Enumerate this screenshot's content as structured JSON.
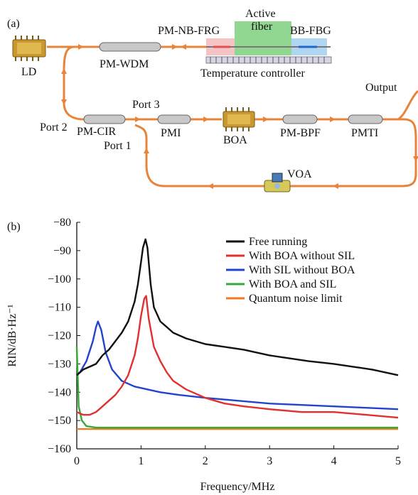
{
  "panel_a": {
    "label": "(a)",
    "components": {
      "ld": "LD",
      "pm_wdm": "PM-WDM",
      "pm_nb_frg": "PM-NB-FRG",
      "active_fiber_line1": "Active",
      "active_fiber_line2": "fiber",
      "bb_fbg": "BB-FBG",
      "temperature_controller": "Temperature controller",
      "output": "Output",
      "port2": "Port 2",
      "port3": "Port 3",
      "port1": "Port 1",
      "pm_cir": "PM-CIR",
      "pmi": "PMI",
      "boa": "BOA",
      "pm_bpf": "PM-BPF",
      "pmti": "PMTI",
      "voa": "VOA"
    },
    "colors": {
      "fiber": "#e8843a",
      "device_body": "#c8c8c8",
      "chip_gold": "#c9982f",
      "fbg_red": "#e05050",
      "active_green": "#7ed07e",
      "fbg_blue": "#5fa8e0"
    }
  },
  "panel_b": {
    "label": "(b)"
  },
  "chart_data": {
    "type": "line",
    "xlabel": "Frequency/MHz",
    "ylabel": "RIN/dB·Hz⁻¹",
    "xlim": [
      0,
      5
    ],
    "ylim": [
      -160,
      -80
    ],
    "xticks": [
      "0",
      "1",
      "2",
      "3",
      "4",
      "5"
    ],
    "yticks": [
      "−80",
      "−90",
      "−100",
      "−110",
      "−120",
      "−130",
      "−140",
      "−150",
      "−160"
    ],
    "grid": false,
    "legend_position": "top-right",
    "series": [
      {
        "name": "Free running",
        "color": "#111111",
        "x": [
          0,
          0.1,
          0.2,
          0.3,
          0.4,
          0.5,
          0.6,
          0.7,
          0.8,
          0.9,
          0.95,
          1.0,
          1.03,
          1.07,
          1.1,
          1.15,
          1.2,
          1.3,
          1.4,
          1.5,
          1.7,
          2.0,
          2.3,
          2.6,
          3.0,
          3.3,
          3.6,
          4.0,
          4.3,
          4.6,
          5.0
        ],
        "y": [
          -134,
          -132,
          -131,
          -130,
          -127,
          -125,
          -122,
          -119,
          -115,
          -108,
          -102,
          -94,
          -89,
          -86,
          -89,
          -102,
          -110,
          -115,
          -117,
          -119,
          -121,
          -123,
          -124,
          -125,
          -127,
          -128,
          -129,
          -130,
          -131,
          -132,
          -134
        ]
      },
      {
        "name": "With BOA without SIL",
        "color": "#e03030",
        "x": [
          0,
          0.1,
          0.2,
          0.3,
          0.4,
          0.5,
          0.6,
          0.7,
          0.8,
          0.9,
          0.95,
          1.0,
          1.05,
          1.08,
          1.12,
          1.2,
          1.3,
          1.4,
          1.5,
          1.7,
          2.0,
          2.3,
          2.6,
          3.0,
          3.5,
          4.0,
          4.5,
          5.0
        ],
        "y": [
          -147,
          -148,
          -148,
          -147,
          -145,
          -143,
          -141,
          -138,
          -134,
          -127,
          -121,
          -113,
          -107,
          -106,
          -114,
          -124,
          -129,
          -133,
          -136,
          -139,
          -142,
          -144,
          -145,
          -146,
          -147,
          -147,
          -148,
          -149
        ]
      },
      {
        "name": "With SIL without BOA",
        "color": "#2244cc",
        "x": [
          0,
          0.05,
          0.15,
          0.25,
          0.3,
          0.33,
          0.38,
          0.45,
          0.55,
          0.7,
          0.9,
          1.1,
          1.3,
          1.6,
          2.0,
          2.5,
          3.0,
          3.5,
          4.0,
          4.5,
          5.0
        ],
        "y": [
          -134,
          -133,
          -129,
          -122,
          -117,
          -115,
          -118,
          -126,
          -132,
          -136,
          -138,
          -139,
          -140,
          -141,
          -142,
          -143,
          -144,
          -144.5,
          -145,
          -145.5,
          -146
        ]
      },
      {
        "name": "With BOA and SIL",
        "color": "#33aa33",
        "x": [
          0,
          0.03,
          0.08,
          0.15,
          0.3,
          0.6,
          1.0,
          1.5,
          2.0,
          2.5,
          3.0,
          3.5,
          4.0,
          4.5,
          5.0
        ],
        "y": [
          -124,
          -145,
          -150,
          -152,
          -152.5,
          -152.5,
          -152.5,
          -152.5,
          -152.5,
          -152.5,
          -152.5,
          -152.5,
          -152.5,
          -152.5,
          -152.5
        ]
      },
      {
        "name": "Quantum noise limit",
        "color": "#f07a20",
        "x": [
          0,
          5
        ],
        "y": [
          -153,
          -153
        ]
      }
    ]
  }
}
